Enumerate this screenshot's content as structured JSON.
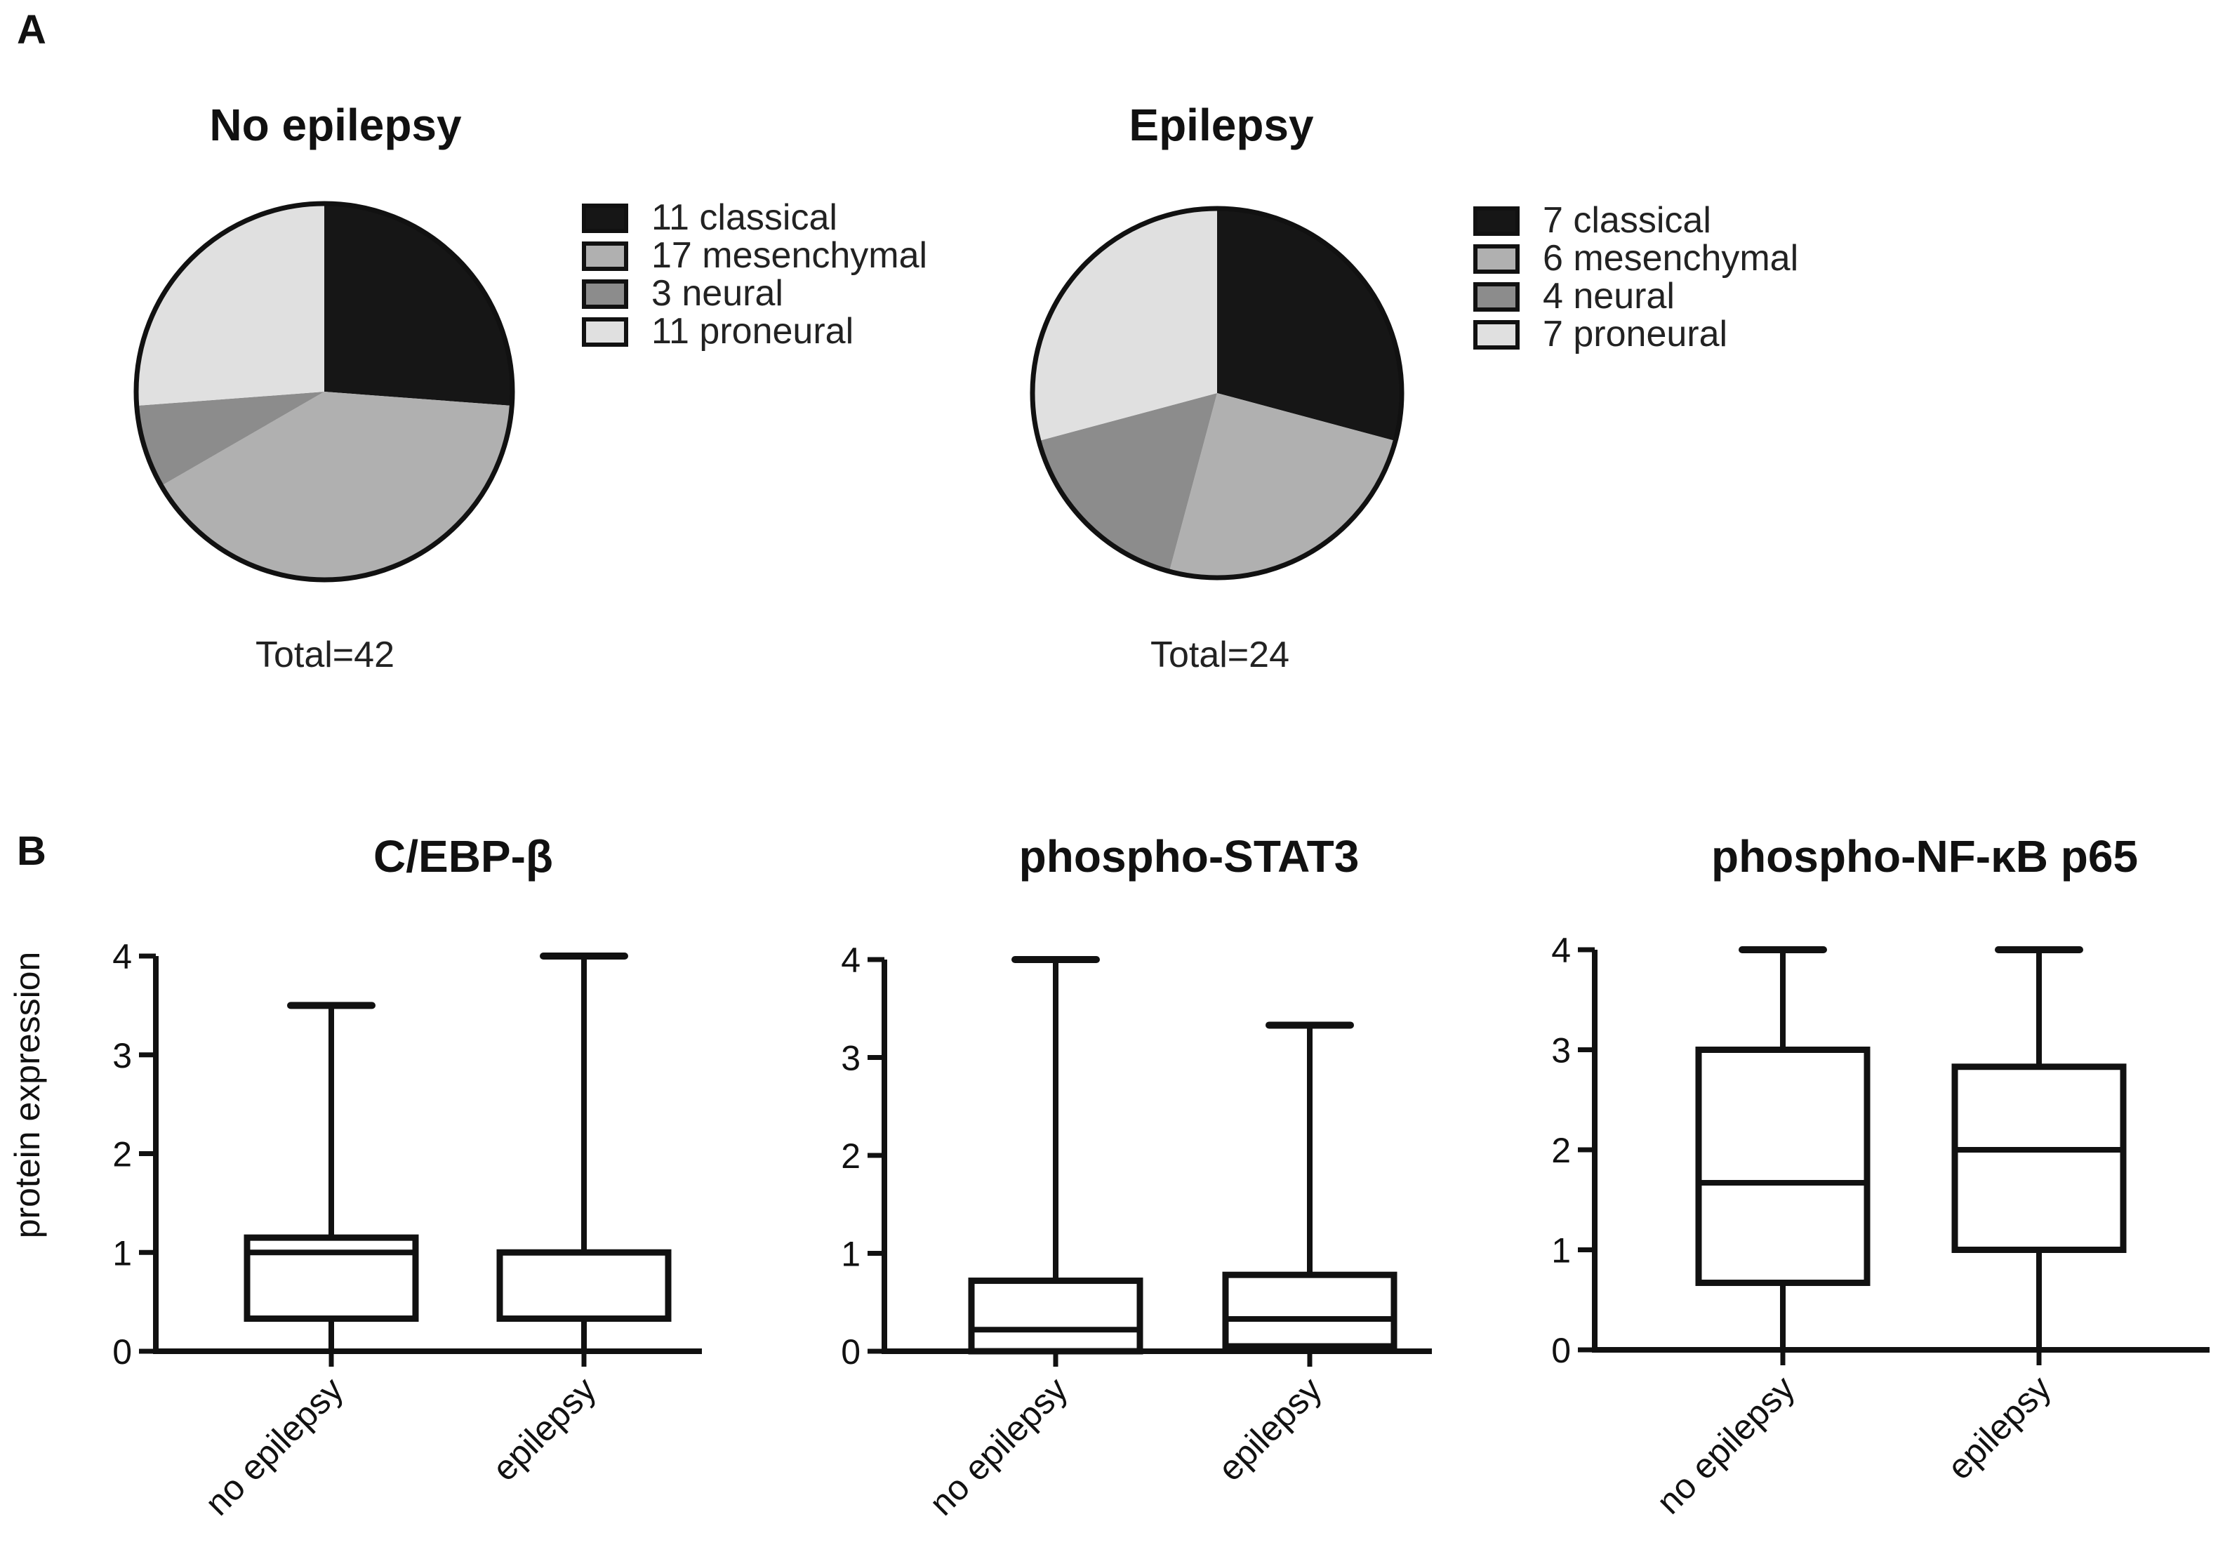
{
  "panels": {
    "a_label": "A",
    "b_label": "B"
  },
  "colors": {
    "classical": "#161616",
    "mesenchymal": "#b0b0b0",
    "neural": "#8c8c8c",
    "proneural": "#e0e0e0",
    "stroke": "#111111"
  },
  "chart_data": [
    {
      "type": "pie",
      "title": "No epilepsy",
      "total_label": "Total=42",
      "slices": [
        {
          "key": "classical",
          "value": 11,
          "label": "11 classical"
        },
        {
          "key": "mesenchymal",
          "value": 17,
          "label": "17 mesenchymal"
        },
        {
          "key": "neural",
          "value": 3,
          "label": "3 neural"
        },
        {
          "key": "proneural",
          "value": 11,
          "label": "11 proneural"
        }
      ]
    },
    {
      "type": "pie",
      "title": "Epilepsy",
      "total_label": "Total=24",
      "slices": [
        {
          "key": "classical",
          "value": 7,
          "label": "7 classical"
        },
        {
          "key": "mesenchymal",
          "value": 6,
          "label": "6 mesenchymal"
        },
        {
          "key": "neural",
          "value": 4,
          "label": "4 neural"
        },
        {
          "key": "proneural",
          "value": 7,
          "label": "7 proneural"
        }
      ]
    },
    {
      "type": "box",
      "title": "C/EBP-β",
      "ylabel": "protein expression",
      "ylim": [
        0,
        4
      ],
      "yticks": [
        "0",
        "1",
        "2",
        "3",
        "4"
      ],
      "categories": [
        "no epilepsy",
        "epilepsy"
      ],
      "boxes": [
        {
          "min": 0,
          "q1": 0.33,
          "median": 1.0,
          "q3": 1.15,
          "max": 3.5
        },
        {
          "min": 0,
          "q1": 0.33,
          "median": 1.0,
          "q3": 1.0,
          "max": 4.0
        }
      ]
    },
    {
      "type": "box",
      "title": "phospho-STAT3",
      "ylabel": "",
      "ylim": [
        0,
        4
      ],
      "yticks": [
        "0",
        "1",
        "2",
        "3",
        "4"
      ],
      "categories": [
        "no epilepsy",
        "epilepsy"
      ],
      "boxes": [
        {
          "min": 0,
          "q1": 0,
          "median": 0.22,
          "q3": 0.72,
          "max": 4.0
        },
        {
          "min": 0,
          "q1": 0.05,
          "median": 0.33,
          "q3": 0.78,
          "max": 3.33
        }
      ]
    },
    {
      "type": "box",
      "title": "phospho-NF-κB p65",
      "ylabel": "",
      "ylim": [
        0,
        4
      ],
      "yticks": [
        "0",
        "1",
        "2",
        "3",
        "4"
      ],
      "categories": [
        "no epilepsy",
        "epilepsy"
      ],
      "boxes": [
        {
          "min": 0,
          "q1": 0.67,
          "median": 1.67,
          "q3": 3.0,
          "max": 4.0
        },
        {
          "min": 0,
          "q1": 1.0,
          "median": 2.0,
          "q3": 2.83,
          "max": 4.0
        }
      ]
    }
  ]
}
